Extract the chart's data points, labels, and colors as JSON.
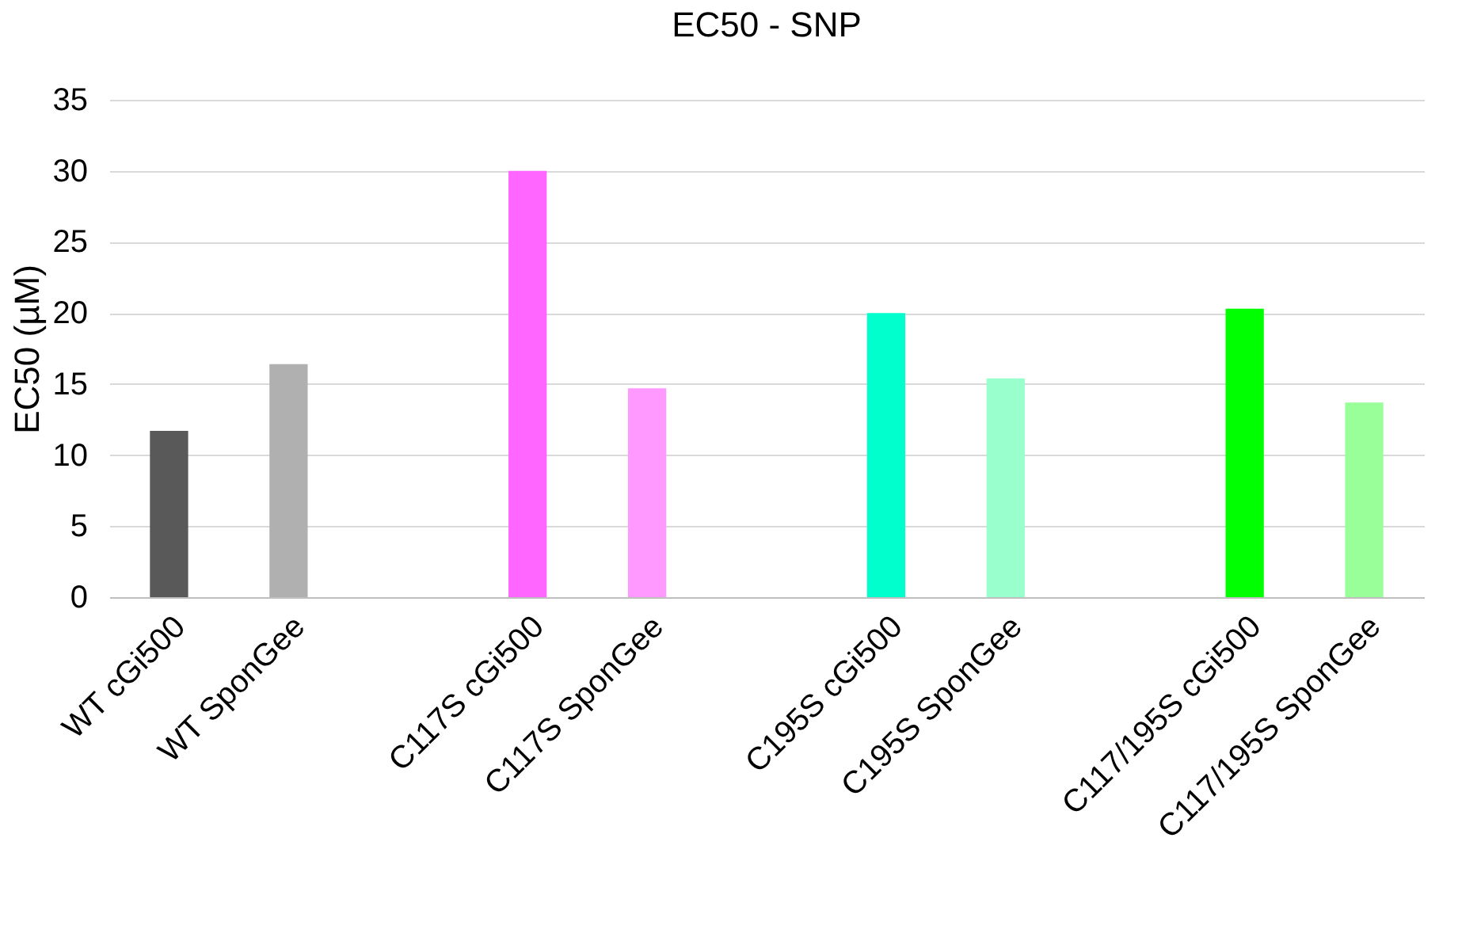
{
  "chart_data": {
    "type": "bar",
    "title": "EC50 - SNP",
    "ylabel": "EC50 (µM)",
    "categories": [
      "WT cGi500",
      "WT SponGee",
      null,
      "C117S cGi500",
      "C117S SponGee",
      null,
      "C195S cGi500",
      "C195S SponGee",
      null,
      "C117/195S cGi500",
      "C117/195S SponGee"
    ],
    "values": [
      11.7,
      16.4,
      null,
      30.0,
      14.7,
      null,
      20.0,
      15.4,
      null,
      20.3,
      13.7
    ],
    "colors": [
      "#595959",
      "#b0b0b0",
      null,
      "#ff66ff",
      "#ff99ff",
      null,
      "#00ffcc",
      "#99ffcc",
      null,
      "#00ff00",
      "#99ff99"
    ],
    "ylim": [
      0,
      35
    ],
    "yticks": [
      0,
      5,
      10,
      15,
      20,
      25,
      30,
      35
    ],
    "grid": "y"
  }
}
